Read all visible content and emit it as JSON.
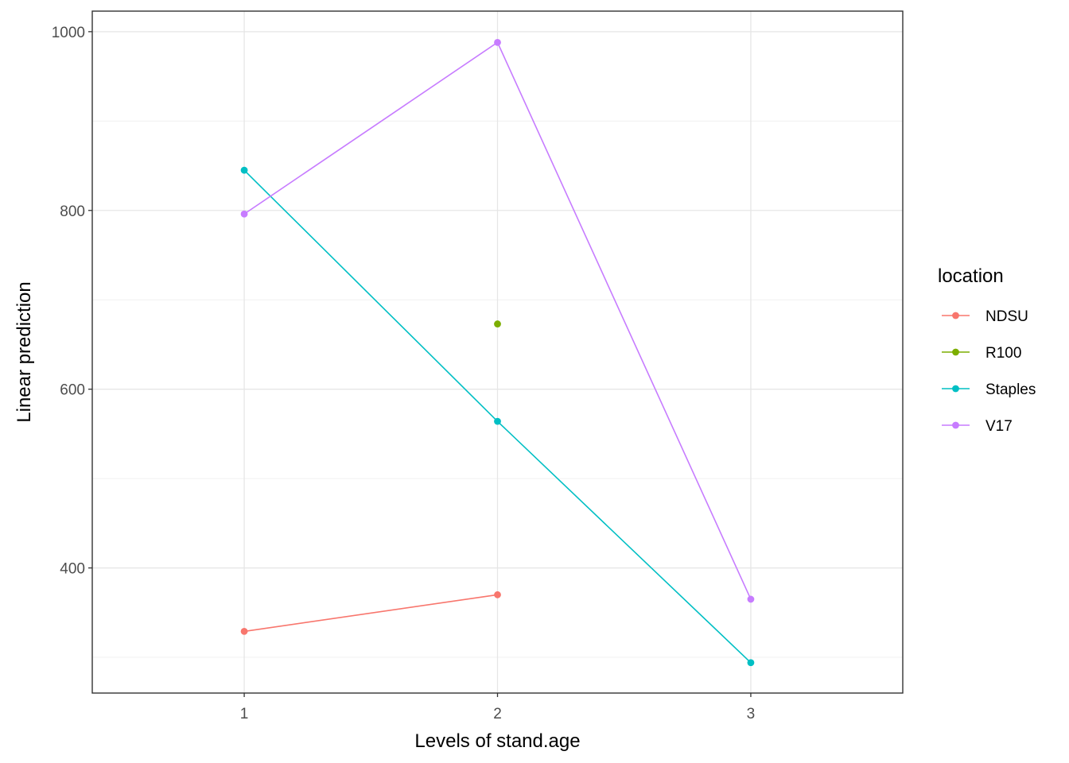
{
  "chart_data": {
    "type": "line",
    "title": "",
    "xlabel": "Levels of stand.age",
    "ylabel": "Linear prediction",
    "x_categories": [
      "1",
      "2",
      "3"
    ],
    "xlim": [
      0.4,
      3.6
    ],
    "ylim": [
      260,
      1023
    ],
    "y_ticks": [
      400,
      600,
      800,
      1000
    ],
    "y_minor_ticks": [
      300,
      500,
      700,
      900
    ],
    "grid": true,
    "legend": {
      "title": "location",
      "placement": "right"
    },
    "series": [
      {
        "name": "NDSU",
        "color": "#F8766D",
        "x": [
          1,
          2
        ],
        "y": [
          329,
          370
        ]
      },
      {
        "name": "R100",
        "color": "#7CAE00",
        "x": [
          2
        ],
        "y": [
          673
        ]
      },
      {
        "name": "Staples",
        "color": "#00BFC4",
        "x": [
          1,
          2,
          3
        ],
        "y": [
          845,
          564,
          294
        ]
      },
      {
        "name": "V17",
        "color": "#C77CFF",
        "x": [
          1,
          2,
          3
        ],
        "y": [
          796,
          988,
          365
        ]
      }
    ]
  }
}
